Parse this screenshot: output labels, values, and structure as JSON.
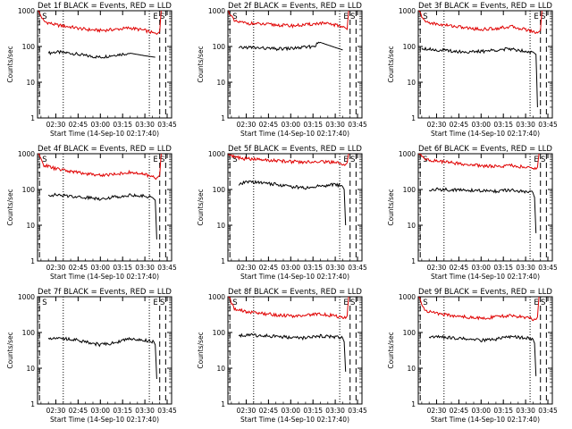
{
  "chart_data": [
    {
      "type": "line",
      "title": "Det 1f BLACK = Events, RED = LLD",
      "xlabel": "Start Time (14-Sep-10 02:17:40)",
      "ylabel": "Counts/sec",
      "ylog": true,
      "ylim": [
        1,
        1000
      ],
      "yticks": [
        "1",
        "10",
        "100",
        "1000"
      ],
      "xticks": [
        "02:30",
        "02:45",
        "03:00",
        "03:15",
        "03:30",
        "03:45"
      ],
      "markers": [
        "E",
        "S"
      ],
      "series": [
        {
          "name": "Events",
          "color": "#000000",
          "x": [
            "02:25",
            "02:30",
            "02:40",
            "02:50",
            "03:00",
            "03:10",
            "03:20",
            "03:30",
            "03:37"
          ],
          "values": [
            65,
            70,
            65,
            55,
            50,
            58,
            65,
            55,
            50
          ]
        },
        {
          "name": "LLD",
          "color": "#e00000",
          "x": [
            "02:18",
            "02:22",
            "02:30",
            "02:40",
            "02:50",
            "03:00",
            "03:10",
            "03:20",
            "03:30",
            "03:38",
            "03:40",
            "03:41"
          ],
          "values": [
            1000,
            500,
            400,
            350,
            300,
            280,
            300,
            330,
            280,
            220,
            260,
            1000
          ]
        }
      ]
    },
    {
      "type": "line",
      "title": "Det 2f BLACK = Events, RED = LLD",
      "xlabel": "Start Time (14-Sep-10 02:17:40)",
      "ylabel": "Counts/sec",
      "ylog": true,
      "ylim": [
        1,
        1000
      ],
      "yticks": [
        "1",
        "10",
        "100",
        "1000"
      ],
      "xticks": [
        "02:30",
        "02:45",
        "03:00",
        "03:15",
        "03:30",
        "03:45"
      ],
      "markers": [
        "E",
        "S"
      ],
      "series": [
        {
          "name": "Events",
          "color": "#000000",
          "x": [
            "02:25",
            "02:30",
            "02:40",
            "02:50",
            "03:00",
            "03:10",
            "03:15",
            "03:20",
            "03:25",
            "03:35"
          ],
          "values": [
            90,
            95,
            90,
            85,
            88,
            95,
            100,
            130,
            110,
            80
          ]
        },
        {
          "name": "LLD",
          "color": "#e00000",
          "x": [
            "02:18",
            "02:22",
            "02:30",
            "02:40",
            "02:50",
            "03:00",
            "03:10",
            "03:20",
            "03:30",
            "03:36",
            "03:38",
            "03:39"
          ],
          "values": [
            1000,
            500,
            450,
            420,
            400,
            380,
            400,
            450,
            400,
            350,
            300,
            1000
          ]
        }
      ]
    },
    {
      "type": "line",
      "title": "Det 3f BLACK = Events, RED = LLD",
      "xlabel": "Start Time (14-Sep-10 02:17:40)",
      "ylabel": "Counts/sec",
      "ylog": true,
      "ylim": [
        1,
        1000
      ],
      "yticks": [
        "1",
        "10",
        "100",
        "1000"
      ],
      "xticks": [
        "02:30",
        "02:45",
        "03:00",
        "03:15",
        "03:30",
        "03:45"
      ],
      "markers": [
        "E",
        "S"
      ],
      "series": [
        {
          "name": "Events",
          "color": "#000000",
          "x": [
            "02:20",
            "02:30",
            "02:40",
            "02:50",
            "03:00",
            "03:10",
            "03:20",
            "03:30",
            "03:35",
            "03:37",
            "03:38"
          ],
          "values": [
            90,
            80,
            75,
            70,
            72,
            80,
            85,
            75,
            70,
            60,
            2
          ]
        },
        {
          "name": "LLD",
          "color": "#e00000",
          "x": [
            "02:18",
            "02:22",
            "02:30",
            "02:40",
            "02:50",
            "03:00",
            "03:10",
            "03:20",
            "03:30",
            "03:38",
            "03:40",
            "03:41"
          ],
          "values": [
            1000,
            500,
            420,
            380,
            330,
            300,
            320,
            360,
            300,
            240,
            280,
            1000
          ]
        }
      ]
    },
    {
      "type": "line",
      "title": "Det 4f BLACK = Events, RED = LLD",
      "xlabel": "Start Time (14-Sep-10 02:17:40)",
      "ylabel": "Counts/sec",
      "ylog": true,
      "ylim": [
        1,
        1000
      ],
      "yticks": [
        "1",
        "10",
        "100",
        "1000"
      ],
      "xticks": [
        "02:30",
        "02:45",
        "03:00",
        "03:15",
        "03:30",
        "03:45"
      ],
      "markers": [
        "E",
        "S"
      ],
      "series": [
        {
          "name": "Events",
          "color": "#000000",
          "x": [
            "02:25",
            "02:30",
            "02:40",
            "02:50",
            "03:00",
            "03:10",
            "03:20",
            "03:30",
            "03:35",
            "03:37",
            "03:38"
          ],
          "values": [
            70,
            70,
            65,
            60,
            55,
            62,
            70,
            65,
            60,
            50,
            4
          ]
        },
        {
          "name": "LLD",
          "color": "#e00000",
          "x": [
            "02:18",
            "02:22",
            "02:30",
            "02:40",
            "02:50",
            "03:00",
            "03:10",
            "03:20",
            "03:30",
            "03:38",
            "03:40",
            "03:41"
          ],
          "values": [
            1000,
            480,
            380,
            320,
            280,
            250,
            270,
            300,
            260,
            210,
            250,
            1000
          ]
        }
      ]
    },
    {
      "type": "line",
      "title": "Det 5f BLACK = Events, RED = LLD",
      "xlabel": "Start Time (14-Sep-10 02:17:40)",
      "ylabel": "Counts/sec",
      "ylog": true,
      "ylim": [
        1,
        1000
      ],
      "yticks": [
        "1",
        "10",
        "100",
        "1000"
      ],
      "xticks": [
        "02:30",
        "02:45",
        "03:00",
        "03:15",
        "03:30",
        "03:45"
      ],
      "markers": [
        "E",
        "S"
      ],
      "series": [
        {
          "name": "Events",
          "color": "#000000",
          "x": [
            "02:25",
            "02:30",
            "02:40",
            "02:50",
            "03:00",
            "03:10",
            "03:20",
            "03:30",
            "03:35",
            "03:36",
            "03:37"
          ],
          "values": [
            130,
            165,
            155,
            140,
            120,
            110,
            125,
            140,
            120,
            100,
            10
          ]
        },
        {
          "name": "LLD",
          "color": "#e00000",
          "x": [
            "02:18",
            "02:22",
            "02:30",
            "02:40",
            "02:50",
            "03:00",
            "03:10",
            "03:20",
            "03:30",
            "03:37",
            "03:38",
            "03:39"
          ],
          "values": [
            1000,
            800,
            720,
            680,
            640,
            600,
            580,
            620,
            560,
            500,
            560,
            1000
          ]
        }
      ]
    },
    {
      "type": "line",
      "title": "Det 6f BLACK = Events, RED = LLD",
      "xlabel": "Start Time (14-Sep-10 02:17:40)",
      "ylabel": "Counts/sec",
      "ylog": true,
      "ylim": [
        1,
        1000
      ],
      "yticks": [
        "1",
        "10",
        "100",
        "1000"
      ],
      "xticks": [
        "02:30",
        "02:45",
        "03:00",
        "03:15",
        "03:30",
        "03:45"
      ],
      "markers": [
        "E",
        "S"
      ],
      "series": [
        {
          "name": "Events",
          "color": "#000000",
          "x": [
            "02:25",
            "02:30",
            "02:40",
            "02:50",
            "03:00",
            "03:10",
            "03:20",
            "03:30",
            "03:35",
            "03:36",
            "03:37"
          ],
          "values": [
            95,
            100,
            98,
            95,
            92,
            90,
            95,
            85,
            80,
            60,
            6
          ]
        },
        {
          "name": "LLD",
          "color": "#e00000",
          "x": [
            "02:18",
            "02:22",
            "02:30",
            "02:40",
            "02:50",
            "03:00",
            "03:10",
            "03:20",
            "03:30",
            "03:37",
            "03:38",
            "03:39"
          ],
          "values": [
            1000,
            700,
            620,
            560,
            500,
            460,
            440,
            470,
            420,
            370,
            420,
            1000
          ]
        }
      ]
    },
    {
      "type": "line",
      "title": "Det 7f BLACK = Events, RED = LLD",
      "xlabel": "Start Time (14-Sep-10 02:17:40)",
      "ylabel": "Counts/sec",
      "ylog": true,
      "ylim": [
        1,
        1000
      ],
      "yticks": [
        "1",
        "10",
        "100",
        "1000"
      ],
      "xticks": [
        "02:30",
        "02:45",
        "03:00",
        "03:15",
        "03:30",
        "03:45"
      ],
      "markers": [
        "E",
        "S"
      ],
      "series": [
        {
          "name": "Events",
          "color": "#000000",
          "x": [
            "02:25",
            "02:30",
            "02:40",
            "02:50",
            "03:00",
            "03:10",
            "03:20",
            "03:30",
            "03:36",
            "03:37",
            "03:38"
          ],
          "values": [
            70,
            72,
            65,
            55,
            45,
            52,
            68,
            60,
            55,
            45,
            5
          ]
        }
      ]
    },
    {
      "type": "line",
      "title": "Det 8f BLACK = Events, RED = LLD",
      "xlabel": "Start Time (14-Sep-10 02:17:40)",
      "ylabel": "Counts/sec",
      "ylog": true,
      "ylim": [
        1,
        1000
      ],
      "yticks": [
        "1",
        "10",
        "100",
        "1000"
      ],
      "xticks": [
        "02:30",
        "02:45",
        "03:00",
        "03:15",
        "03:30",
        "03:45"
      ],
      "markers": [
        "E",
        "S"
      ],
      "series": [
        {
          "name": "Events",
          "color": "#000000",
          "x": [
            "02:25",
            "02:30",
            "02:40",
            "02:50",
            "03:00",
            "03:10",
            "03:20",
            "03:30",
            "03:35",
            "03:36",
            "03:37"
          ],
          "values": [
            80,
            85,
            82,
            78,
            72,
            70,
            80,
            75,
            70,
            55,
            8
          ]
        },
        {
          "name": "LLD",
          "color": "#e00000",
          "x": [
            "02:18",
            "02:22",
            "02:30",
            "02:40",
            "02:50",
            "03:00",
            "03:10",
            "03:20",
            "03:30",
            "03:37",
            "03:38",
            "03:39"
          ],
          "values": [
            1000,
            450,
            380,
            340,
            310,
            290,
            300,
            330,
            290,
            250,
            290,
            1000
          ]
        }
      ]
    },
    {
      "type": "line",
      "title": "Det 9f BLACK = Events, RED = LLD",
      "xlabel": "Start Time (14-Sep-10 02:17:40)",
      "ylabel": "Counts/sec",
      "ylog": true,
      "ylim": [
        1,
        1000
      ],
      "yticks": [
        "1",
        "10",
        "100",
        "1000"
      ],
      "xticks": [
        "02:30",
        "02:45",
        "03:00",
        "03:15",
        "03:30",
        "03:45"
      ],
      "markers": [
        "E",
        "S"
      ],
      "series": [
        {
          "name": "Events",
          "color": "#000000",
          "x": [
            "02:25",
            "02:30",
            "02:40",
            "02:50",
            "03:00",
            "03:10",
            "03:20",
            "03:30",
            "03:35",
            "03:36",
            "03:37"
          ],
          "values": [
            75,
            78,
            72,
            65,
            60,
            65,
            75,
            70,
            65,
            50,
            6
          ]
        },
        {
          "name": "LLD",
          "color": "#e00000",
          "x": [
            "02:18",
            "02:22",
            "02:30",
            "02:40",
            "02:50",
            "03:00",
            "03:10",
            "03:20",
            "03:30",
            "03:37",
            "03:38",
            "03:39"
          ],
          "values": [
            1000,
            420,
            340,
            300,
            270,
            250,
            270,
            300,
            260,
            230,
            270,
            1000
          ]
        }
      ]
    }
  ]
}
